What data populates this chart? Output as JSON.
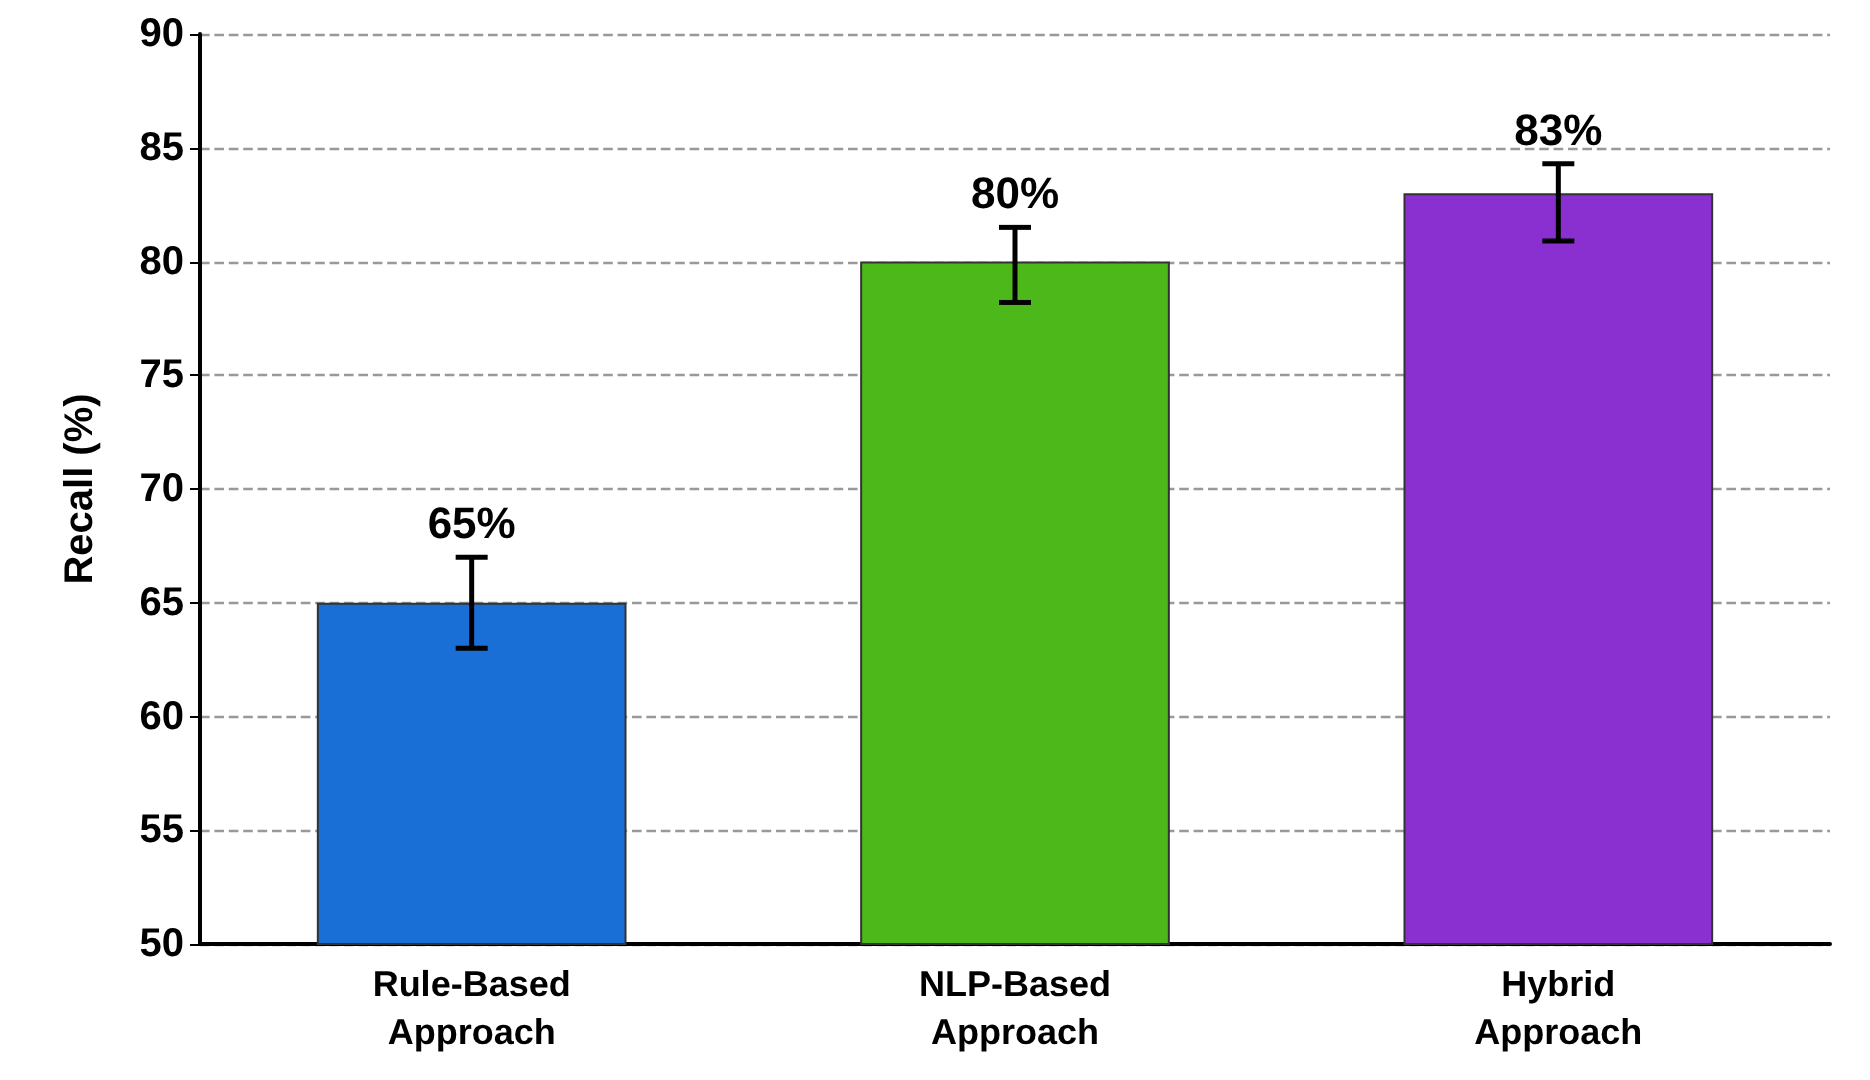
{
  "chart_data": {
    "type": "bar",
    "ylabel": "Recall (%)",
    "categories": [
      "Rule-Based\nApproach",
      "NLP-Based\nApproach",
      "Hybrid\nApproach"
    ],
    "values": [
      65,
      80,
      83
    ],
    "colors": [
      "#1a6fd6",
      "#4cb81a",
      "#8a2fd0"
    ],
    "errors": [
      [
        63,
        67
      ],
      [
        78.2,
        81.5
      ],
      [
        80.9,
        84.3
      ]
    ],
    "value_labels": [
      "65%",
      "80%",
      "83%"
    ],
    "ylim": [
      50,
      90
    ],
    "yticks": [
      50,
      55,
      60,
      65,
      70,
      75,
      80,
      85,
      90
    ],
    "grid": "y"
  }
}
